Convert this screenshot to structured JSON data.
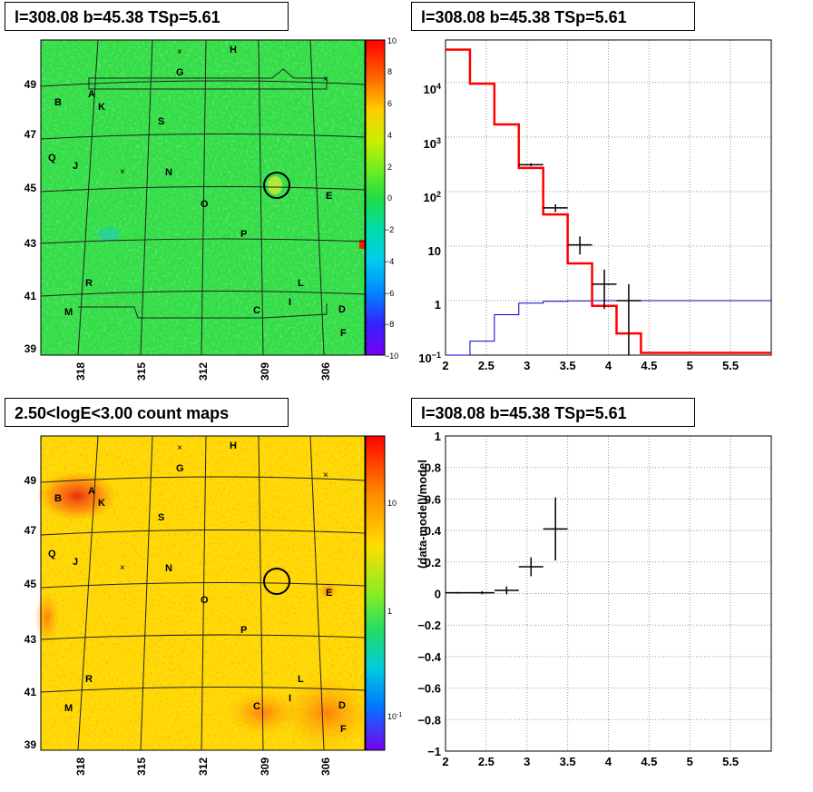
{
  "panels": {
    "tl_title": "l=308.08 b=45.38 TSp=5.61",
    "tr_title": "l=308.08 b=45.38 TSp=5.61",
    "bl_title": "2.50<logE<3.00 count maps",
    "br_title": "l=308.08 b=45.38 TSp=5.61"
  },
  "colors": {
    "model_red": "#ff0000",
    "background_blue": "#0000cc",
    "data_black": "#000000",
    "tl_map_base": "#33dd44",
    "bl_map_base": "#ffdd00"
  },
  "chart_data": [
    {
      "type": "heatmap",
      "name_in_image": "tl_residual_map",
      "x_ticks": [
        "318",
        "315",
        "312",
        "309",
        "306"
      ],
      "y_ticks": [
        "49",
        "47",
        "45",
        "43",
        "41",
        "39"
      ],
      "colorbar_ticks": [
        "10",
        "8",
        "6",
        "4",
        "2",
        "0",
        "−2",
        "−4",
        "−6",
        "−8",
        "−10"
      ],
      "zlim": [
        -10,
        10
      ],
      "source_labels": [
        "H",
        "G",
        "A",
        "K",
        "B",
        "S",
        "Q",
        "J",
        "N",
        "E",
        "O",
        "P",
        "R",
        "L",
        "I",
        "M",
        "C",
        "D",
        "F"
      ],
      "circle_center": {
        "l": 308.08,
        "b": 45.38
      }
    },
    {
      "type": "line",
      "name_in_image": "tr_counts_spectrum",
      "y_scale": "log",
      "xlim": [
        2,
        6
      ],
      "ylim": [
        0.1,
        60000
      ],
      "x_ticks": [
        "2",
        "2.5",
        "3",
        "3.5",
        "4",
        "4.5",
        "5",
        "5.5"
      ],
      "y_ticks": [
        "10^-1",
        "1",
        "10",
        "10^2",
        "10^3",
        "10^4"
      ],
      "model_total": {
        "edges": [
          2.0,
          2.3,
          2.6,
          2.9,
          3.2,
          3.5,
          3.8,
          4.1,
          4.4,
          6.0
        ],
        "values": [
          40000,
          9500,
          1700,
          270,
          38,
          4.8,
          0.8,
          0.25,
          0.11
        ]
      },
      "background": {
        "edges": [
          2.0,
          2.3,
          2.6,
          2.9,
          3.2,
          3.5,
          3.8,
          4.1,
          4.4,
          6.0
        ],
        "values": [
          0.07,
          0.18,
          0.55,
          0.9,
          0.97,
          0.99,
          1.0,
          1.0,
          1.0
        ]
      },
      "data_points": [
        {
          "x": 3.05,
          "y": 310,
          "xerr": 0.15,
          "ylo": 290,
          "yhi": 330
        },
        {
          "x": 3.35,
          "y": 50,
          "xerr": 0.15,
          "ylo": 42,
          "yhi": 58
        },
        {
          "x": 3.65,
          "y": 10.5,
          "xerr": 0.15,
          "ylo": 7,
          "yhi": 15
        },
        {
          "x": 3.95,
          "y": 2.0,
          "xerr": 0.15,
          "ylo": 0.7,
          "yhi": 3.7
        },
        {
          "x": 4.25,
          "y": 1.0,
          "xerr": 0.15,
          "ylo": 0.09,
          "yhi": 2.0
        }
      ]
    },
    {
      "type": "heatmap",
      "name_in_image": "bl_count_map",
      "x_ticks": [
        "318",
        "315",
        "312",
        "309",
        "306"
      ],
      "y_ticks": [
        "49",
        "47",
        "45",
        "43",
        "41",
        "39"
      ],
      "colorbar_ticks": [
        "10",
        "1",
        "10^-1"
      ],
      "z_scale": "log",
      "source_labels": [
        "H",
        "G",
        "A",
        "K",
        "B",
        "S",
        "Q",
        "J",
        "N",
        "E",
        "O",
        "P",
        "R",
        "L",
        "I",
        "M",
        "C",
        "D",
        "F"
      ]
    },
    {
      "type": "scatter",
      "name_in_image": "br_residual",
      "ylabel": "(data-model)/model",
      "xlim": [
        2,
        6
      ],
      "ylim": [
        -1,
        1
      ],
      "x_ticks": [
        "2",
        "2.5",
        "3",
        "3.5",
        "4",
        "4.5",
        "5",
        "5.5"
      ],
      "y_ticks": [
        "1",
        "0.8",
        "0.6",
        "0.4",
        "0.2",
        "0",
        "−0.2",
        "−0.4",
        "−0.6",
        "−0.8",
        "−1"
      ],
      "points": [
        {
          "x": 2.15,
          "y": 0.005,
          "xerr": 0.15,
          "yerr": 0.005
        },
        {
          "x": 2.45,
          "y": 0.005,
          "xerr": 0.15,
          "yerr": 0.01
        },
        {
          "x": 2.75,
          "y": 0.02,
          "xerr": 0.15,
          "yerr": 0.025
        },
        {
          "x": 3.05,
          "y": 0.17,
          "xerr": 0.15,
          "yerr": 0.06
        },
        {
          "x": 3.35,
          "y": 0.41,
          "xerr": 0.15,
          "yerr": 0.2
        }
      ]
    }
  ]
}
